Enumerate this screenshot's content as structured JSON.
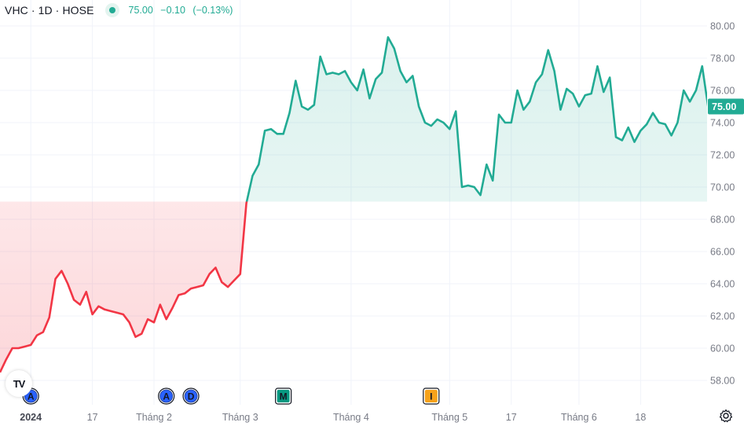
{
  "legend": {
    "symbol": "VHC · 1D · HOSE",
    "last": "75.00",
    "change": "−0.10",
    "change_pct": "(−0.13%)"
  },
  "price_tag": "75.00",
  "colors": {
    "up": "#22ab94",
    "down": "#f23645",
    "up_fill": "#e3f4ef",
    "down_fill": "#fde3e5",
    "grid": "#f0f3fa",
    "axis_text": "#787b86"
  },
  "icons": [
    "tradingview-logo-icon",
    "settings-gear-icon"
  ],
  "chart_data": {
    "type": "area",
    "baseline": 69.1,
    "ylim": [
      57.2,
      80.8
    ],
    "y_ticks": [
      "58.00",
      "60.00",
      "62.00",
      "64.00",
      "66.00",
      "68.00",
      "70.00",
      "72.00",
      "74.00",
      "76.00",
      "78.00",
      "80.00"
    ],
    "x_ticks": [
      {
        "label": "2024",
        "i": 5,
        "bold": true
      },
      {
        "label": "17",
        "i": 15,
        "bold": false
      },
      {
        "label": "Tháng 2",
        "i": 25,
        "bold": false
      },
      {
        "label": "Tháng 3",
        "i": 39,
        "bold": false
      },
      {
        "label": "Tháng 4",
        "i": 57,
        "bold": false
      },
      {
        "label": "Tháng 5",
        "i": 73,
        "bold": false
      },
      {
        "label": "17",
        "i": 83,
        "bold": false
      },
      {
        "label": "Tháng 6",
        "i": 94,
        "bold": false
      },
      {
        "label": "18",
        "i": 104,
        "bold": false
      }
    ],
    "events": [
      {
        "label": "A",
        "i": 5,
        "kind": "dividend"
      },
      {
        "label": "A",
        "i": 27,
        "kind": "dividend"
      },
      {
        "label": "D",
        "i": 31,
        "kind": "dividend"
      },
      {
        "label": "M",
        "i": 46,
        "kind": "meeting"
      },
      {
        "label": "I",
        "i": 70,
        "kind": "info"
      }
    ],
    "values": [
      58.5,
      59.3,
      60.0,
      60.0,
      60.1,
      60.2,
      60.8,
      61.0,
      61.9,
      64.3,
      64.8,
      64.0,
      63.0,
      62.7,
      63.5,
      62.1,
      62.6,
      62.4,
      62.3,
      62.2,
      62.1,
      61.6,
      60.7,
      60.9,
      61.8,
      61.6,
      62.7,
      61.8,
      62.5,
      63.3,
      63.4,
      63.7,
      63.8,
      63.9,
      64.6,
      65.0,
      64.1,
      63.8,
      64.2,
      64.6,
      69.0,
      70.7,
      71.4,
      73.5,
      73.6,
      73.3,
      73.3,
      74.6,
      76.6,
      75.0,
      74.8,
      75.1,
      78.1,
      77.0,
      77.1,
      77.0,
      77.2,
      76.5,
      76.0,
      77.3,
      75.5,
      76.7,
      77.1,
      79.3,
      78.6,
      77.2,
      76.5,
      76.9,
      75.0,
      74.0,
      73.8,
      74.2,
      74.0,
      73.6,
      74.7,
      70.0,
      70.1,
      70.0,
      69.5,
      71.4,
      70.4,
      74.5,
      74.0,
      74.0,
      76.0,
      74.8,
      75.3,
      76.5,
      77.0,
      78.5,
      77.2,
      74.8,
      76.1,
      75.8,
      75.0,
      75.7,
      75.8,
      77.5,
      75.9,
      76.8,
      73.1,
      72.9,
      73.7,
      72.8,
      73.5,
      73.9,
      74.6,
      74.0,
      73.9,
      73.2,
      74.0,
      76.0,
      75.3,
      76.0,
      77.5,
      74.9,
      75.3,
      76.6,
      75.9,
      75.1,
      75.0
    ]
  }
}
